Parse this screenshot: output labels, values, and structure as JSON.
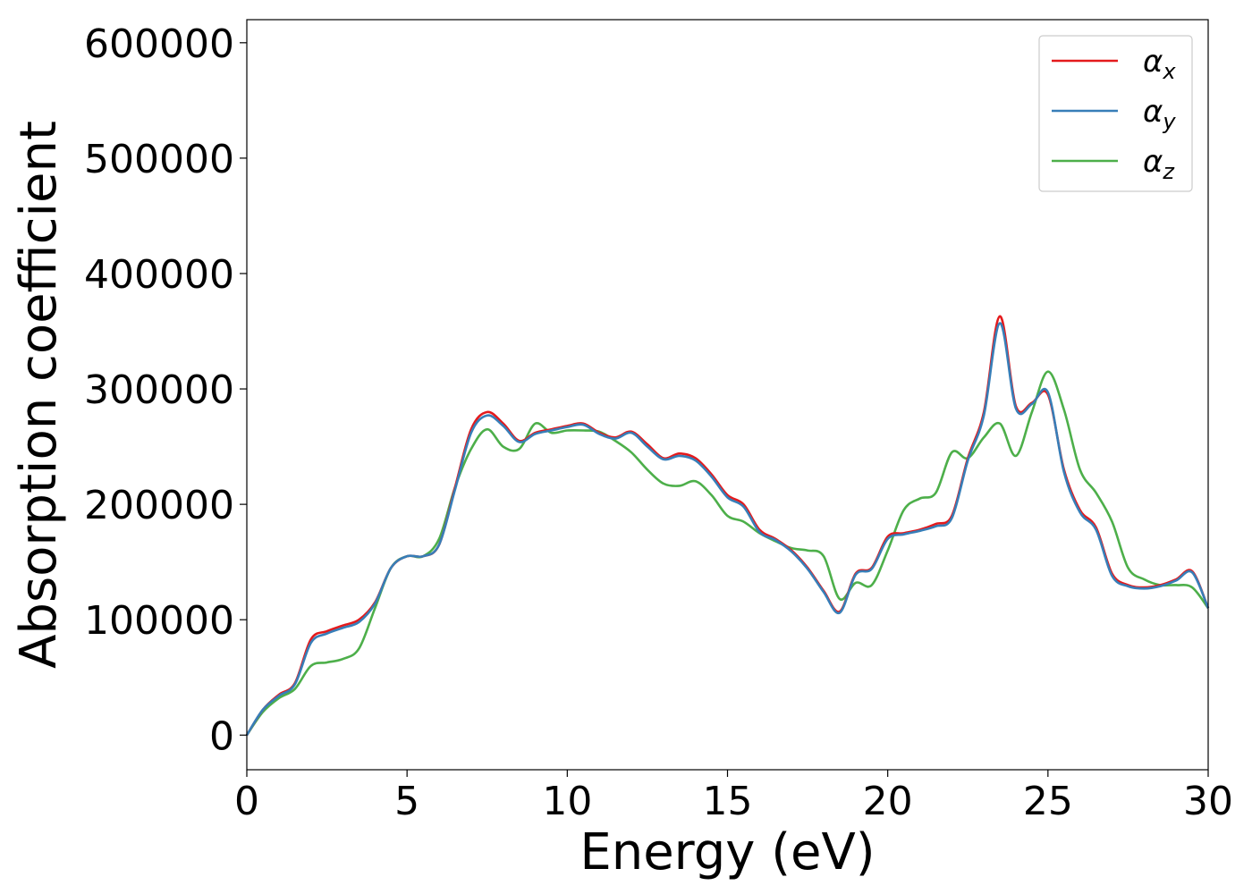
{
  "chart_data": {
    "type": "line",
    "title": "",
    "xlabel": "Energy (eV)",
    "ylabel": "Absorption coefficient",
    "xlim": [
      0,
      30
    ],
    "ylim": [
      -30000,
      620000
    ],
    "xticks": [
      "0",
      "5",
      "10",
      "15",
      "20",
      "25",
      "30"
    ],
    "xtick_values": [
      0,
      5,
      10,
      15,
      20,
      25,
      30
    ],
    "yticks": [
      "0",
      "100000",
      "200000",
      "300000",
      "400000",
      "500000",
      "600000"
    ],
    "ytick_values": [
      0,
      100000,
      200000,
      300000,
      400000,
      500000,
      600000
    ],
    "grid": false,
    "legend_position": "top-right",
    "series": [
      {
        "name": "αx",
        "symbol": "α",
        "subscript": "x",
        "color": "#e41a1c",
        "x": [
          0,
          0.5,
          1.0,
          1.5,
          2.0,
          2.5,
          3.0,
          3.5,
          4.0,
          4.5,
          5.0,
          5.5,
          6.0,
          6.5,
          7.0,
          7.5,
          8.0,
          8.5,
          9.0,
          9.5,
          10.0,
          10.5,
          11.0,
          11.5,
          12.0,
          12.5,
          13.0,
          13.5,
          14.0,
          14.5,
          15.0,
          15.5,
          16.0,
          16.5,
          17.0,
          17.5,
          18.0,
          18.5,
          19.0,
          19.5,
          20.0,
          20.5,
          21.0,
          21.5,
          22.0,
          22.5,
          23.0,
          23.5,
          24.0,
          24.5,
          25.0,
          25.5,
          26.0,
          26.5,
          27.0,
          27.5,
          28.0,
          28.5,
          29.0,
          29.5,
          30.0
        ],
        "y": [
          0,
          22000,
          35000,
          45000,
          83000,
          90000,
          95000,
          100000,
          115000,
          145000,
          155000,
          155000,
          165000,
          215000,
          265000,
          280000,
          270000,
          255000,
          262000,
          265000,
          268000,
          270000,
          262000,
          258000,
          263000,
          252000,
          240000,
          244000,
          240000,
          226000,
          208000,
          200000,
          178000,
          170000,
          160000,
          145000,
          125000,
          107000,
          140000,
          145000,
          172000,
          175000,
          178000,
          183000,
          190000,
          240000,
          280000,
          363000,
          285000,
          288000,
          295000,
          230000,
          195000,
          180000,
          140000,
          130000,
          128000,
          130000,
          135000,
          142000,
          110000
        ]
      },
      {
        "name": "αy",
        "symbol": "α",
        "subscript": "y",
        "color": "#377eb8",
        "x": [
          0,
          0.5,
          1.0,
          1.5,
          2.0,
          2.5,
          3.0,
          3.5,
          4.0,
          4.5,
          5.0,
          5.5,
          6.0,
          6.5,
          7.0,
          7.5,
          8.0,
          8.5,
          9.0,
          9.5,
          10.0,
          10.5,
          11.0,
          11.5,
          12.0,
          12.5,
          13.0,
          13.5,
          14.0,
          14.5,
          15.0,
          15.5,
          16.0,
          16.5,
          17.0,
          17.5,
          18.0,
          18.5,
          19.0,
          19.5,
          20.0,
          20.5,
          21.0,
          21.5,
          22.0,
          22.5,
          23.0,
          23.5,
          24.0,
          24.5,
          25.0,
          25.5,
          26.0,
          26.5,
          27.0,
          27.5,
          28.0,
          28.5,
          29.0,
          29.5,
          30.0
        ],
        "y": [
          0,
          22000,
          34000,
          44000,
          80000,
          88000,
          93000,
          98000,
          114000,
          145000,
          155000,
          155000,
          165000,
          213000,
          262000,
          277000,
          268000,
          254000,
          261000,
          264000,
          267000,
          269000,
          261000,
          257000,
          262000,
          250000,
          239000,
          242000,
          238000,
          224000,
          206000,
          198000,
          176000,
          169000,
          159000,
          144000,
          124000,
          106000,
          139000,
          144000,
          170000,
          174000,
          177000,
          181000,
          188000,
          238000,
          277000,
          357000,
          283000,
          287000,
          297000,
          228000,
          193000,
          178000,
          138000,
          129000,
          127000,
          129000,
          134000,
          141000,
          110000
        ]
      },
      {
        "name": "αz",
        "symbol": "α",
        "subscript": "z",
        "color": "#4daf4a",
        "x": [
          0,
          0.5,
          1.0,
          1.5,
          2.0,
          2.5,
          3.0,
          3.5,
          4.0,
          4.5,
          5.0,
          5.5,
          6.0,
          6.5,
          7.0,
          7.5,
          8.0,
          8.5,
          9.0,
          9.5,
          10.0,
          10.5,
          11.0,
          11.5,
          12.0,
          12.5,
          13.0,
          13.5,
          14.0,
          14.5,
          15.0,
          15.5,
          16.0,
          16.5,
          17.0,
          17.5,
          18.0,
          18.5,
          19.0,
          19.5,
          20.0,
          20.5,
          21.0,
          21.5,
          22.0,
          22.5,
          23.0,
          23.5,
          24.0,
          24.5,
          25.0,
          25.5,
          26.0,
          26.5,
          27.0,
          27.5,
          28.0,
          28.5,
          29.0,
          29.5,
          30.0
        ],
        "y": [
          0,
          20000,
          32000,
          40000,
          60000,
          63000,
          66000,
          75000,
          110000,
          145000,
          155000,
          155000,
          170000,
          215000,
          248000,
          265000,
          250000,
          248000,
          270000,
          262000,
          264000,
          264000,
          263000,
          255000,
          245000,
          230000,
          218000,
          216000,
          220000,
          208000,
          190000,
          185000,
          175000,
          168000,
          162000,
          160000,
          155000,
          118000,
          132000,
          130000,
          160000,
          195000,
          205000,
          210000,
          245000,
          240000,
          258000,
          270000,
          242000,
          280000,
          315000,
          282000,
          230000,
          210000,
          185000,
          145000,
          135000,
          130000,
          130000,
          128000,
          110000
        ]
      }
    ]
  }
}
